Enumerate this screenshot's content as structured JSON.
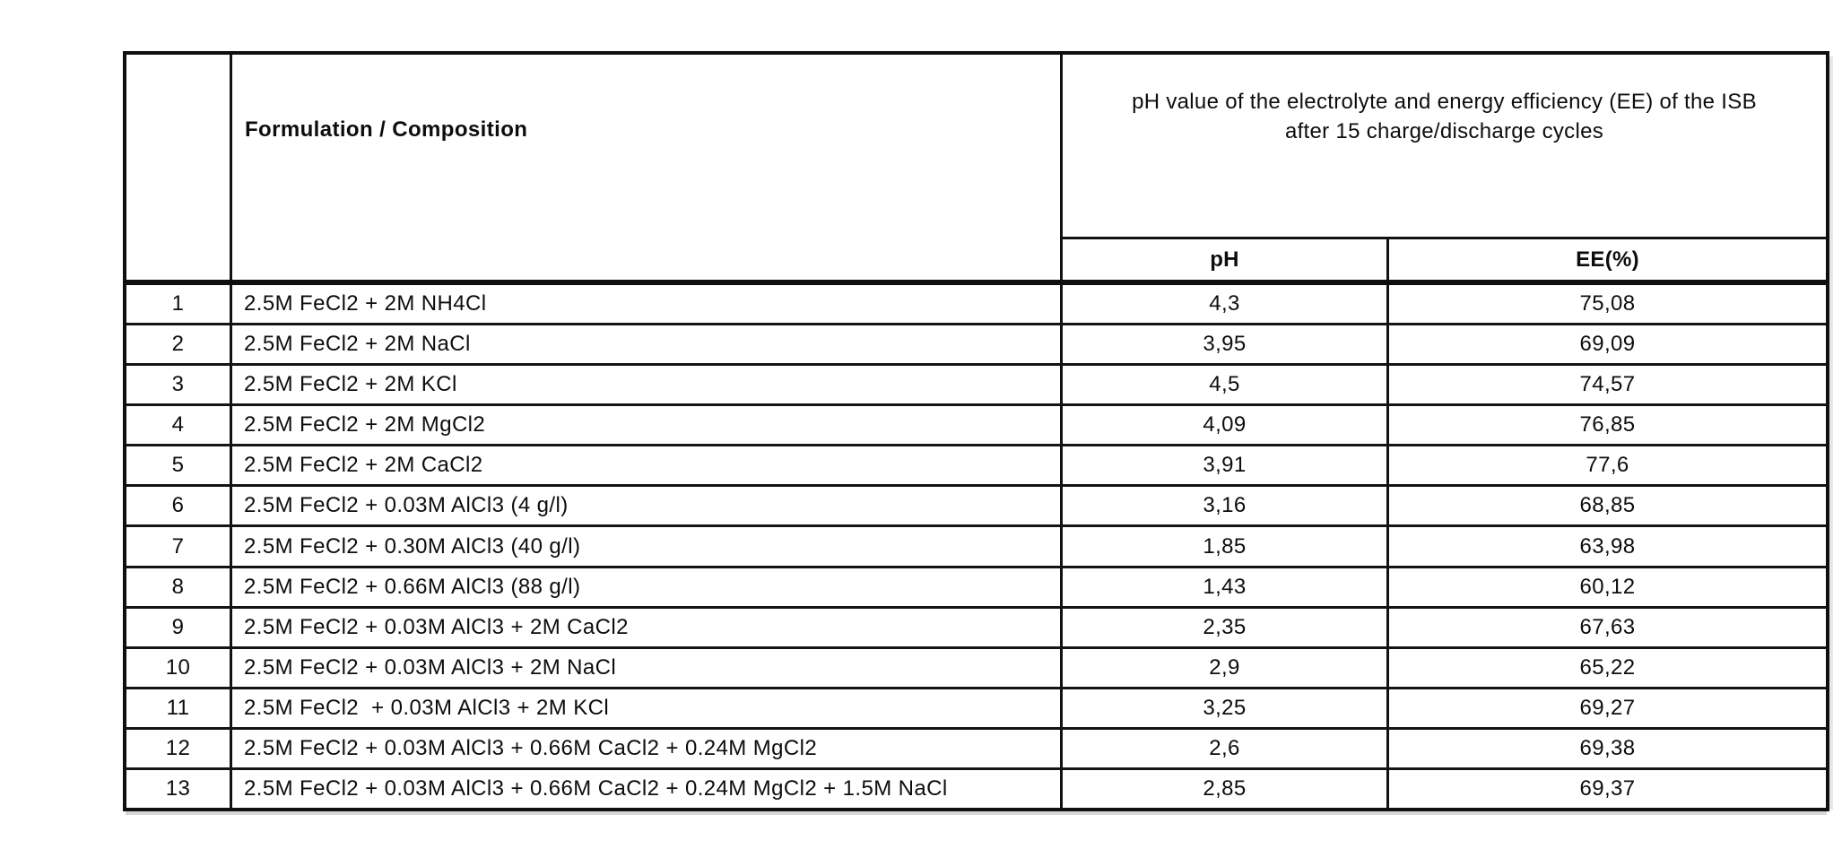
{
  "page": {
    "background": "#ffffff",
    "border_color": "#0f0f0f",
    "text_color": "#0d0d0d"
  },
  "table": {
    "header": {
      "formulation_label": "Formulation / Composition",
      "group_label_line1": "pH value of the electrolyte and energy efficiency (EE) of the ISB",
      "group_label_line2": "after 15 charge/discharge cycles",
      "ph_label": "pH",
      "ee_label": "EE(%)"
    },
    "rows": [
      {
        "num": "1",
        "formulation": "2.5M FeCl2 + 2M NH4Cl",
        "ph": "4,3",
        "ee": "75,08"
      },
      {
        "num": "2",
        "formulation": "2.5M FeCl2 + 2M NaCl",
        "ph": "3,95",
        "ee": "69,09"
      },
      {
        "num": "3",
        "formulation": "2.5M FeCl2 + 2M KCl",
        "ph": "4,5",
        "ee": "74,57"
      },
      {
        "num": "4",
        "formulation": "2.5M FeCl2 + 2M MgCl2",
        "ph": "4,09",
        "ee": "76,85"
      },
      {
        "num": "5",
        "formulation": "2.5M FeCl2 + 2M CaCl2",
        "ph": "3,91",
        "ee": "77,6"
      },
      {
        "num": "6",
        "formulation": "2.5M FeCl2 + 0.03M AlCl3 (4 g/l)",
        "ph": "3,16",
        "ee": "68,85"
      },
      {
        "num": "7",
        "formulation": "2.5M FeCl2 + 0.30M AlCl3 (40 g/l)",
        "ph": "1,85",
        "ee": "63,98"
      },
      {
        "num": "8",
        "formulation": "2.5M FeCl2 + 0.66M AlCl3 (88 g/l)",
        "ph": "1,43",
        "ee": "60,12"
      },
      {
        "num": "9",
        "formulation": "2.5M FeCl2 + 0.03M AlCl3 + 2M CaCl2",
        "ph": "2,35",
        "ee": "67,63"
      },
      {
        "num": "10",
        "formulation": "2.5M FeCl2 + 0.03M AlCl3 + 2M NaCl",
        "ph": "2,9",
        "ee": "65,22"
      },
      {
        "num": "11",
        "formulation": "2.5M FeCl2  + 0.03M AlCl3 + 2M KCl",
        "ph": "3,25",
        "ee": "69,27"
      },
      {
        "num": "12",
        "formulation": "2.5M FeCl2 + 0.03M AlCl3 + 0.66M CaCl2 + 0.24M MgCl2",
        "ph": "2,6",
        "ee": "69,38"
      },
      {
        "num": "13",
        "formulation": "2.5M FeCl2 + 0.03M AlCl3 + 0.66M CaCl2 + 0.24M MgCl2 + 1.5M NaCl",
        "ph": "2,85",
        "ee": "69,37"
      }
    ]
  }
}
